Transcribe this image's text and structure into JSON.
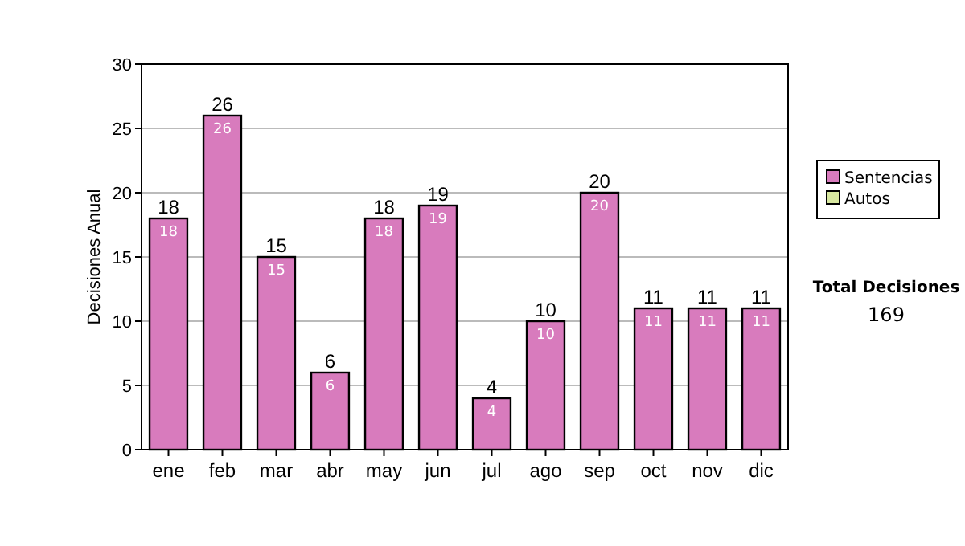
{
  "chart_data": {
    "type": "bar",
    "stacked": true,
    "ylabel": "Decisiones Anual",
    "categories": [
      "ene",
      "feb",
      "mar",
      "abr",
      "may",
      "jun",
      "jul",
      "ago",
      "sep",
      "oct",
      "nov",
      "dic"
    ],
    "series": [
      {
        "name": "Sentencias",
        "color": "#d87bbd",
        "values": [
          18,
          26,
          15,
          6,
          18,
          19,
          4,
          10,
          20,
          11,
          11,
          11
        ],
        "value_labels": [
          "18",
          "26",
          "15",
          "6",
          "18",
          "19",
          "4",
          "10",
          "20",
          "11",
          "11",
          "11"
        ]
      },
      {
        "name": "Autos",
        "color": "#d8e8a0",
        "values": [
          0,
          0,
          0,
          0,
          0,
          0,
          0,
          0,
          0,
          0,
          0,
          0
        ]
      }
    ],
    "totals": [
      "18",
      "26",
      "15",
      "6",
      "18",
      "19",
      "4",
      "10",
      "20",
      "11",
      "11",
      "11"
    ],
    "ylim": [
      0,
      30
    ],
    "yticks": [
      0,
      5,
      10,
      15,
      20,
      25,
      30
    ],
    "grid": "y",
    "legend": "right",
    "annotations": [
      "Total Decisiones",
      "169"
    ]
  }
}
